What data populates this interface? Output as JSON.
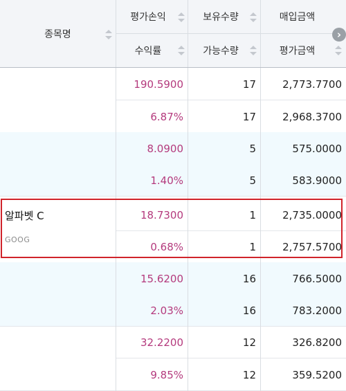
{
  "header": {
    "name_col": "종목명",
    "col1_top": "평가손익",
    "col1_bottom": "수익률",
    "col2_top": "보유수량",
    "col2_bottom": "가능수량",
    "col3_top": "매입금액",
    "col3_bottom": "평가금액",
    "scroll_right_glyph": "›"
  },
  "selected_stock": {
    "name": "알파벳 C",
    "code": "GOOG"
  },
  "rows": [
    {
      "col1": "190.5900",
      "col2": "17",
      "col3": "2,773.7700"
    },
    {
      "col1": "6.87%",
      "col2": "17",
      "col3": "2,968.3700"
    },
    {
      "col1": "8.0900",
      "col2": "5",
      "col3": "575.0000"
    },
    {
      "col1": "1.40%",
      "col2": "5",
      "col3": "583.9000"
    },
    {
      "col1": "18.7300",
      "col2": "1",
      "col3": "2,735.0000"
    },
    {
      "col1": "0.68%",
      "col2": "1",
      "col3": "2,757.5700"
    },
    {
      "col1": "15.6200",
      "col2": "16",
      "col3": "766.5000"
    },
    {
      "col1": "2.03%",
      "col2": "16",
      "col3": "783.2000"
    },
    {
      "col1": "32.2200",
      "col2": "12",
      "col3": "326.8200"
    },
    {
      "col1": "9.85%",
      "col2": "12",
      "col3": "359.5200"
    }
  ],
  "colors": {
    "value_pink": "#b43a7d",
    "highlight_border": "#d0232a",
    "alt_row_bg": "#f1fafe"
  }
}
